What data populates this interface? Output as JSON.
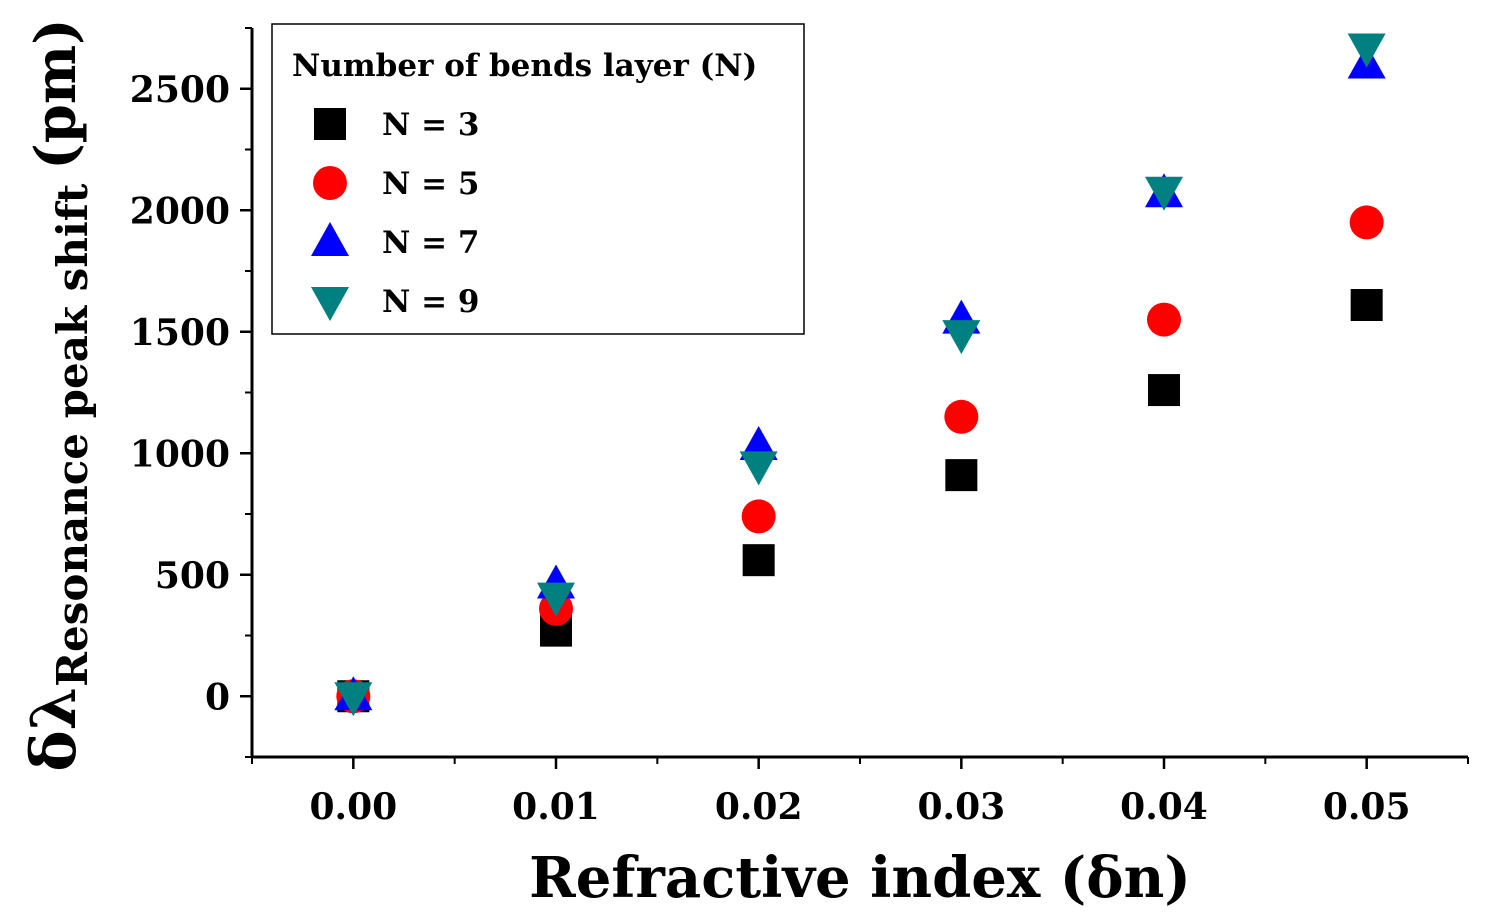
{
  "chart_data": {
    "type": "scatter",
    "xlabel": "Refractive index (δn)",
    "ylabel_main": "δλ",
    "ylabel_sub": "Resonance peak shift",
    "ylabel_unit": "(pm)",
    "xlim": [
      -0.005,
      0.055
    ],
    "ylim": [
      -250,
      2750
    ],
    "x_ticks": [
      "0.00",
      "0.01",
      "0.02",
      "0.03",
      "0.04",
      "0.05"
    ],
    "y_ticks": [
      "0",
      "500",
      "1000",
      "1500",
      "2000",
      "2500"
    ],
    "x": [
      0.0,
      0.01,
      0.02,
      0.03,
      0.04,
      0.05
    ],
    "legend_title": "Number of bends layer (N)",
    "legend_position": "top-left",
    "series": [
      {
        "name": "N = 3",
        "marker": "square",
        "color": "#000000",
        "values": [
          0,
          270,
          560,
          910,
          1260,
          1610
        ]
      },
      {
        "name": "N = 5",
        "marker": "circle",
        "color": "#ff0000",
        "values": [
          0,
          360,
          740,
          1150,
          1550,
          1950
        ]
      },
      {
        "name": "N = 7",
        "marker": "triangle-up",
        "color": "#0000ff",
        "values": [
          0,
          460,
          1030,
          1550,
          2070,
          2600
        ]
      },
      {
        "name": "N = 9",
        "marker": "triangle-down",
        "color": "#008080",
        "values": [
          0,
          410,
          950,
          1490,
          2080,
          2670
        ]
      }
    ]
  }
}
